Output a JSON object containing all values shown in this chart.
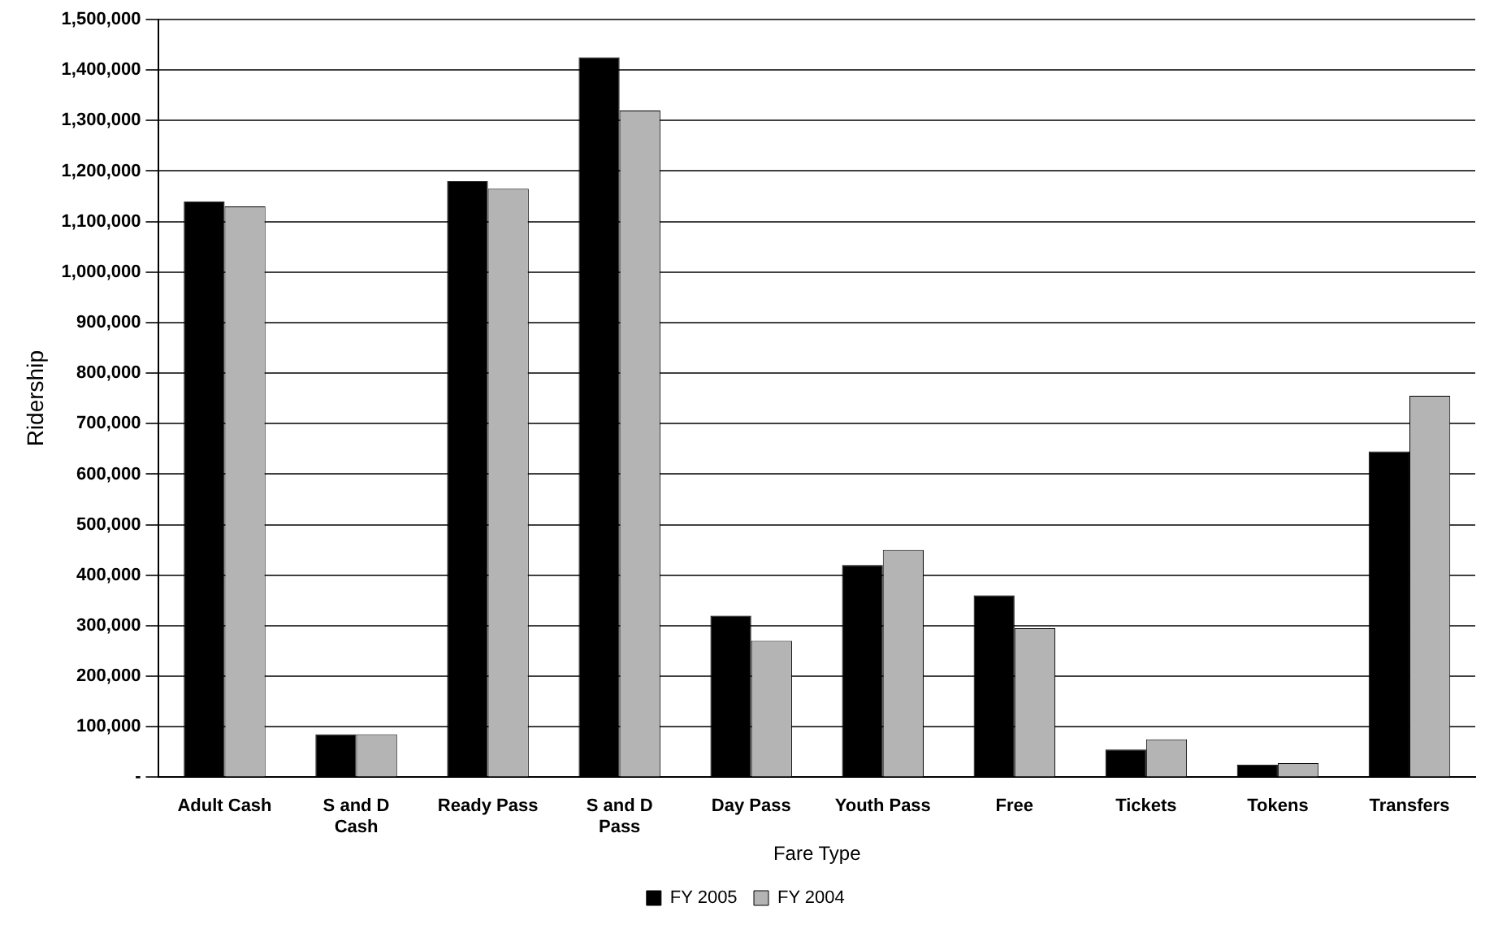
{
  "chart_data": {
    "type": "bar",
    "xlabel": "Fare Type",
    "ylabel": "Ridership",
    "categories": [
      "Adult Cash",
      "S and D Cash",
      "Ready Pass",
      "S and D Pass",
      "Day Pass",
      "Youth Pass",
      "Free",
      "Tickets",
      "Tokens",
      "Transfers"
    ],
    "series": [
      {
        "name": "FY 2005",
        "color": "#000000",
        "values": [
          1140000,
          85000,
          1180000,
          1425000,
          320000,
          420000,
          360000,
          55000,
          25000,
          645000
        ]
      },
      {
        "name": "FY 2004",
        "color": "#b4b4b4",
        "values": [
          1130000,
          85000,
          1165000,
          1320000,
          270000,
          450000,
          295000,
          75000,
          28000,
          755000
        ]
      }
    ],
    "ylim": [
      0,
      1500000
    ],
    "yticks": [
      {
        "value": 0,
        "label": "-"
      },
      {
        "value": 100000,
        "label": "100,000"
      },
      {
        "value": 200000,
        "label": "200,000"
      },
      {
        "value": 300000,
        "label": "300,000"
      },
      {
        "value": 400000,
        "label": "400,000"
      },
      {
        "value": 500000,
        "label": "500,000"
      },
      {
        "value": 600000,
        "label": "600,000"
      },
      {
        "value": 700000,
        "label": "700,000"
      },
      {
        "value": 800000,
        "label": "800,000"
      },
      {
        "value": 900000,
        "label": "900,000"
      },
      {
        "value": 1000000,
        "label": "1,000,000"
      },
      {
        "value": 1100000,
        "label": "1,100,000"
      },
      {
        "value": 1200000,
        "label": "1,200,000"
      },
      {
        "value": 1300000,
        "label": "1,300,000"
      },
      {
        "value": 1400000,
        "label": "1,400,000"
      },
      {
        "value": 1500000,
        "label": "1,500,000"
      }
    ],
    "grid": "y",
    "legend": "bottom"
  }
}
